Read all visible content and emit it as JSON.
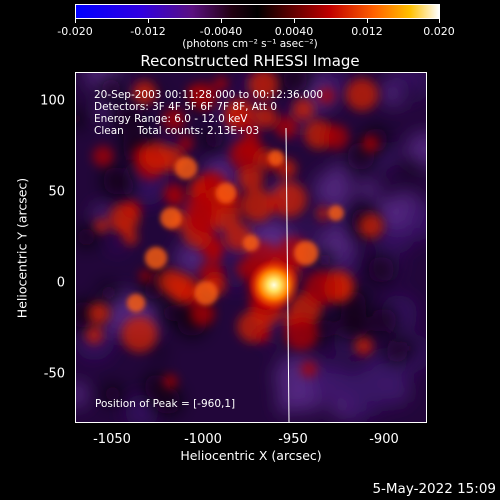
{
  "colorbar": {
    "ticks": [
      "-0.020",
      "-0.012",
      "-0.0040",
      "0.0040",
      "0.012",
      "0.020"
    ],
    "units": "(photons cm⁻² s⁻¹ asec⁻²)"
  },
  "title": "Reconstructed RHESSI Image",
  "info": {
    "time": "20-Sep-2003 00:11:28.000 to 00:12:36.000",
    "detectors": "Detectors: 3F 4F 5F 6F 7F 8F, Att 0",
    "energy": "Energy Range: 6.0 - 12.0 keV",
    "clean": "Clean    Total counts: 2.13E+03",
    "peak": "Position of Peak = [-960,1]"
  },
  "xaxis": {
    "label": "Heliocentric X (arcsec)",
    "ticks": [
      "-1050",
      "-1000",
      "-950",
      "-900"
    ]
  },
  "yaxis": {
    "label": "Heliocentric Y (arcsec)",
    "ticks": [
      "100",
      "50",
      "0",
      "-50"
    ]
  },
  "datestamp": "5-May-2022 15:09"
}
